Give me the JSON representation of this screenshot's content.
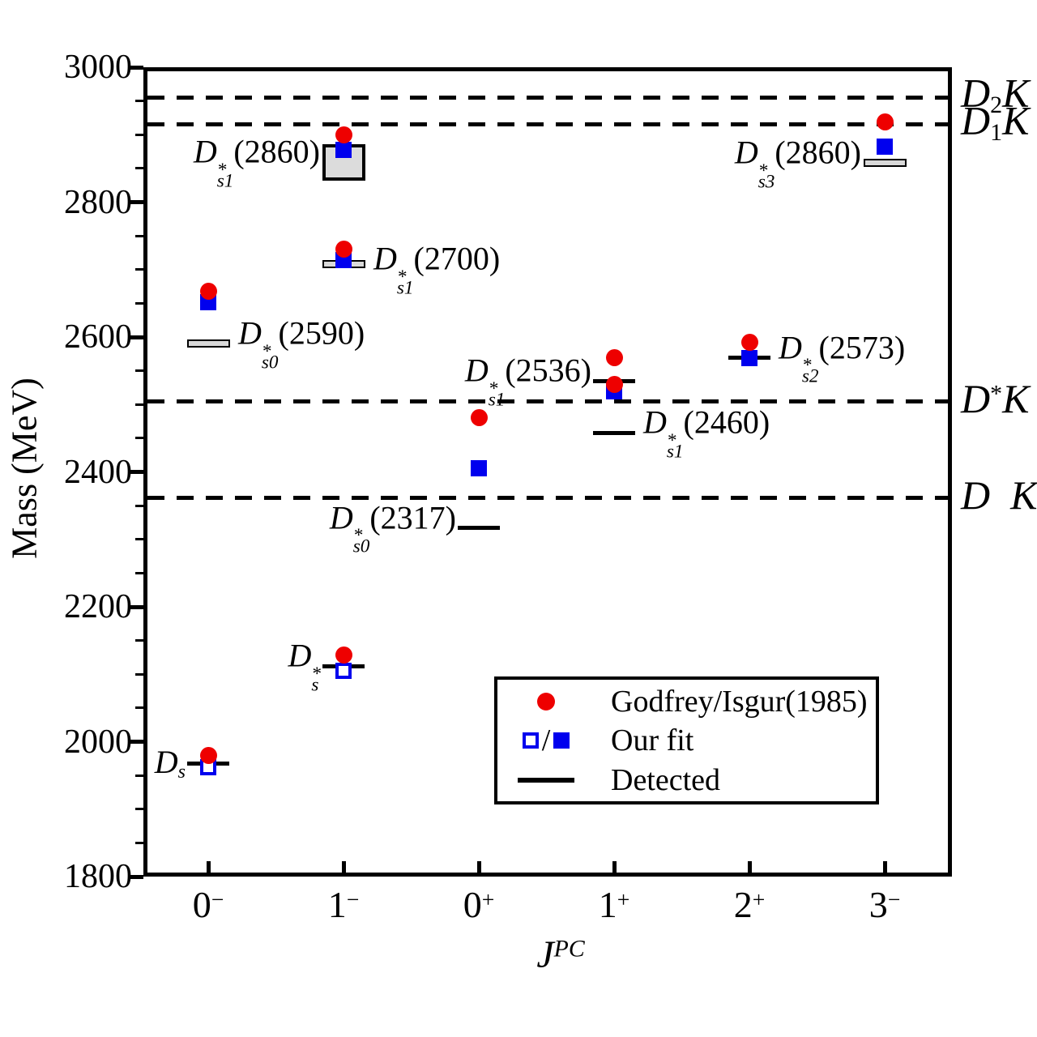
{
  "chart_data": {
    "type": "scatter",
    "title": "",
    "ylabel": "Mass (MeV)",
    "xlabel": {
      "base": "J",
      "sup": "PC"
    },
    "ylim": [
      1800,
      3000
    ],
    "ytick_step": 200,
    "yminor_step": 50,
    "grid": false,
    "legend_position": "bottom-right-inside",
    "categories": [
      {
        "base": "0",
        "sup": "−"
      },
      {
        "base": "1",
        "sup": "−"
      },
      {
        "base": "0",
        "sup": "+"
      },
      {
        "base": "1",
        "sup": "+"
      },
      {
        "base": "2",
        "sup": "+"
      },
      {
        "base": "3",
        "sup": "−"
      }
    ],
    "series_legend": [
      "Godfrey/Isgur(1985)",
      "Our fit",
      "Detected"
    ],
    "thresholds": [
      {
        "name": "D2K",
        "mass": 2955,
        "label": {
          "base": "D",
          "sub": "2",
          "tail_i": "K"
        }
      },
      {
        "name": "D1K",
        "mass": 2915,
        "label": {
          "base": "D",
          "sub": "1",
          "tail_i": "K"
        }
      },
      {
        "name": "DstarK",
        "mass": 2505,
        "label": {
          "base": "D",
          "sup": "*",
          "tail_i": "K"
        }
      },
      {
        "name": "DK",
        "mass": 2362,
        "label": {
          "base": "D",
          "tail_i": "  K"
        }
      }
    ],
    "states": [
      {
        "jpc": "0−",
        "col": 0,
        "gi": 1980,
        "fit": 1962,
        "fit_marker": "open",
        "detected": {
          "mass": 1967,
          "style": "line"
        },
        "label": {
          "base": "D",
          "sub": "s"
        },
        "label_side": "left"
      },
      {
        "jpc": "0−",
        "col": 0,
        "gi": 2668,
        "fit": 2652,
        "fit_marker": "filled",
        "detected": {
          "mass": 2590,
          "style": "band",
          "half_width_mev": 5
        },
        "label": {
          "base": "D",
          "sup": "*",
          "sub": "s0",
          "tail": "(2590)"
        },
        "label_side": "right"
      },
      {
        "jpc": "1−",
        "col": 1,
        "gi": 2129,
        "fit": 2105,
        "fit_marker": "open",
        "detected": {
          "mass": 2112,
          "style": "line"
        },
        "label": {
          "base": "D",
          "sup": "*",
          "sub": "s"
        },
        "label_side": "left"
      },
      {
        "jpc": "1−",
        "col": 1,
        "gi": 2730,
        "fit": 2714,
        "fit_marker": "filled",
        "detected": {
          "mass": 2708,
          "style": "band",
          "half_width_mev": 5
        },
        "label": {
          "base": "D",
          "sup": "*",
          "sub": "s1",
          "tail": "(2700)"
        },
        "label_side": "right",
        "label_dy": 6
      },
      {
        "jpc": "1−",
        "col": 1,
        "gi": 2900,
        "fit": 2878,
        "fit_marker": "filled",
        "detected": {
          "mass": 2859,
          "style": "box",
          "half_width_mev": 27
        },
        "label": {
          "base": "D",
          "sup": "*",
          "sub": "s1",
          "tail": "(2860)"
        },
        "label_side": "left"
      },
      {
        "jpc": "0+",
        "col": 2,
        "gi": 2480,
        "fit": 2406,
        "fit_marker": "filled",
        "detected": {
          "mass": 2317,
          "style": "line"
        },
        "label": {
          "base": "D",
          "sup": "*",
          "sub": "s0",
          "tail": "(2317)"
        },
        "label_side": "left"
      },
      {
        "jpc": "1+",
        "col": 3,
        "gi": 2569
      },
      {
        "jpc": "1+",
        "col": 3,
        "gi": 2530,
        "fit": 2520,
        "fit_marker": "filled",
        "detected": {
          "mass": 2535,
          "style": "line"
        },
        "label": {
          "base": "D",
          "sup": "*",
          "sub": "s1",
          "tail": "(2536)"
        },
        "label_side": "left"
      },
      {
        "jpc": "1+",
        "col": 3,
        "detected": {
          "mass": 2458,
          "style": "line"
        },
        "label": {
          "base": "D",
          "sup": "*",
          "sub": "s1",
          "tail": "(2460)"
        },
        "label_side": "right"
      },
      {
        "jpc": "2+",
        "col": 4,
        "gi": 2592,
        "fit": 2569,
        "fit_marker": "filled",
        "detected": {
          "mass": 2569,
          "style": "line"
        },
        "label": {
          "base": "D",
          "sup": "*",
          "sub": "s2",
          "tail": "(2573)"
        },
        "label_side": "right"
      },
      {
        "jpc": "3−",
        "col": 5,
        "gi": 2919,
        "fit": 2882,
        "fit_marker": "filled",
        "detected": {
          "mass": 2858,
          "style": "band",
          "half_width_mev": 6
        },
        "label": {
          "base": "D",
          "sup": "*",
          "sub": "s3",
          "tail": "(2860)"
        },
        "label_side": "left"
      }
    ],
    "colors": {
      "godfrey_isgur": "#ee0000",
      "our_fit": "#0000ee",
      "detected": "#000000",
      "band_fill": "#d9d9d9",
      "box_fill": "#dcdcdc"
    }
  },
  "legend": {
    "items": [
      {
        "marker": "red-circle",
        "label": "Godfrey/Isgur(1985)"
      },
      {
        "marker": "open-blue-square/filled-blue-square",
        "separator": "/",
        "label": "Our fit"
      },
      {
        "marker": "black-line",
        "label": "Detected"
      }
    ]
  }
}
